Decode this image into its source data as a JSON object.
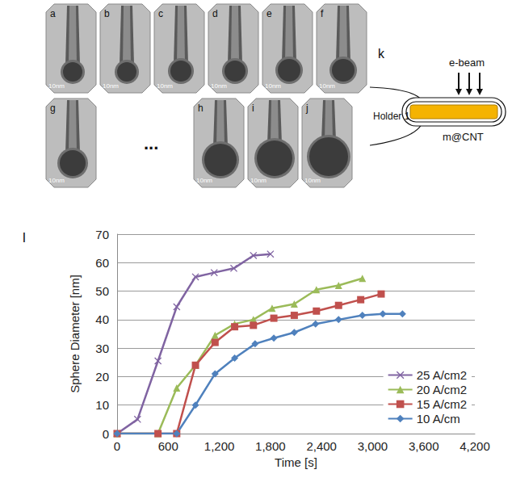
{
  "figure": {
    "images": [
      {
        "letter": "a",
        "scale": "10nm"
      },
      {
        "letter": "b",
        "scale": "10nm"
      },
      {
        "letter": "c",
        "scale": "10nm"
      },
      {
        "letter": "d",
        "scale": "10nm"
      },
      {
        "letter": "e",
        "scale": "10nm"
      },
      {
        "letter": "f",
        "scale": "10nm"
      },
      {
        "letter": "g",
        "scale": "10nm"
      },
      {
        "letter": "h",
        "scale": "10nm"
      },
      {
        "letter": "i",
        "scale": "10nm"
      },
      {
        "letter": "j",
        "scale": "10nm"
      }
    ],
    "ellipsis": "...",
    "schematic": {
      "letter": "k",
      "beam": "e-beam",
      "holder": "Holder 1",
      "sample": "m@CNT"
    }
  },
  "chart_data": {
    "panel_label": "l",
    "type": "line",
    "x_label": "Time [s]",
    "y_label": "Sphere Diameter [nm]",
    "xlim": [
      0,
      4200
    ],
    "xticks": [
      0,
      600,
      1200,
      1800,
      2400,
      3000,
      3600,
      4200
    ],
    "ylim": [
      0,
      70
    ],
    "yticks": [
      0,
      10,
      20,
      30,
      40,
      50,
      60,
      70
    ],
    "grid": true,
    "legend": "lower right",
    "series": [
      {
        "name": "25 A/cm2",
        "color": "#8064a2",
        "marker": "x",
        "x": [
          0,
          240,
          480,
          700,
          920,
          1140,
          1370,
          1600,
          1800
        ],
        "values": [
          0,
          5,
          25.5,
          44.5,
          55,
          56.5,
          58,
          62.5,
          63
        ]
      },
      {
        "name": "20 A/cm2",
        "color": "#9bbb59",
        "marker": "triangle",
        "x": [
          0,
          480,
          700,
          920,
          1150,
          1380,
          1600,
          1820,
          2080,
          2340,
          2600,
          2880
        ],
        "values": [
          0,
          0,
          16,
          24,
          34.5,
          38.5,
          40,
          44,
          45.5,
          50.5,
          52,
          54.5
        ]
      },
      {
        "name": "15 A/cm2",
        "color": "#c0504d",
        "marker": "square",
        "x": [
          0,
          480,
          700,
          920,
          1150,
          1380,
          1600,
          1840,
          2080,
          2340,
          2600,
          2860,
          3100
        ],
        "values": [
          0,
          0,
          0,
          24,
          32,
          37.5,
          38,
          40.5,
          41.5,
          43,
          45,
          47,
          49
        ]
      },
      {
        "name": "10 A/cm",
        "color": "#4f81bd",
        "marker": "diamond",
        "x": [
          0,
          700,
          920,
          1150,
          1380,
          1620,
          1840,
          2080,
          2330,
          2600,
          2880,
          3120,
          3350
        ],
        "values": [
          0,
          0,
          10,
          21,
          26.5,
          31.5,
          33.5,
          35.5,
          38.5,
          40,
          41.5,
          42,
          42
        ]
      }
    ]
  }
}
